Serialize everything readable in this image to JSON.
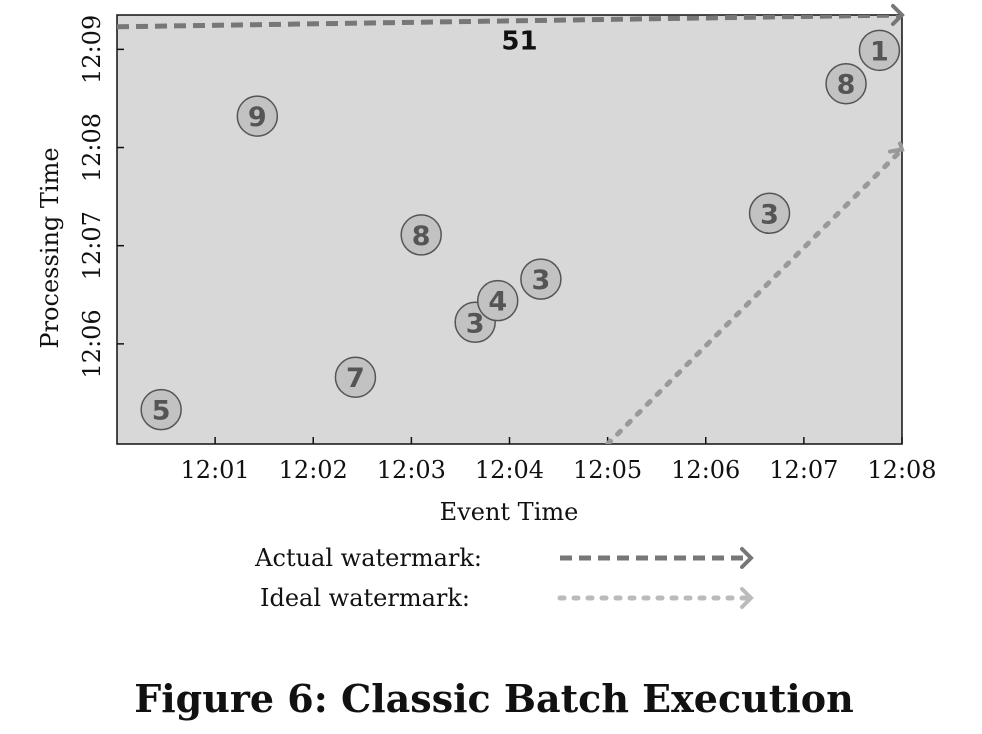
{
  "chart_data": {
    "type": "scatter",
    "xlabel": "Event Time",
    "ylabel": "Processing Time",
    "x_ticks": [
      "12:01",
      "12:02",
      "12:03",
      "12:04",
      "12:05",
      "12:06",
      "12:07",
      "12:08"
    ],
    "y_ticks": [
      "12:06",
      "12:07",
      "12:08",
      "12:09"
    ],
    "xlim": [
      0,
      8
    ],
    "ylim": [
      4.98,
      9.35
    ],
    "points": [
      {
        "label": "5",
        "x": 0.45,
        "y": 5.33
      },
      {
        "label": "9",
        "x": 1.43,
        "y": 8.32
      },
      {
        "label": "7",
        "x": 2.43,
        "y": 5.66
      },
      {
        "label": "8",
        "x": 3.1,
        "y": 7.11
      },
      {
        "label": "3",
        "x": 3.65,
        "y": 6.22
      },
      {
        "label": "4",
        "x": 3.88,
        "y": 6.44
      },
      {
        "label": "3",
        "x": 4.32,
        "y": 6.66
      },
      {
        "label": "3",
        "x": 6.65,
        "y": 7.33
      },
      {
        "label": "8",
        "x": 7.43,
        "y": 8.65
      },
      {
        "label": "1",
        "x": 7.77,
        "y": 8.99
      }
    ],
    "actual_watermark": {
      "x": [
        0,
        8
      ],
      "y": [
        9.23,
        9.35
      ]
    },
    "ideal_watermark": {
      "x": [
        5,
        8
      ],
      "y": [
        4.98,
        7.98
      ]
    },
    "sum_label": {
      "text": "51",
      "x": 4,
      "y": 9.1
    },
    "legend": [
      {
        "label": "Actual watermark:",
        "style": "dashed",
        "color": "#777777"
      },
      {
        "label": "Ideal watermark:",
        "style": "dotted",
        "color": "#bbbbbb"
      }
    ],
    "legend_placement": "bottom-center",
    "grid": false,
    "colors": {
      "plot_background": "#d8d8d8",
      "point_fill": "#c2c2c2",
      "point_stroke": "#555555"
    }
  },
  "caption": "Figure 6: Classic Batch Execution"
}
